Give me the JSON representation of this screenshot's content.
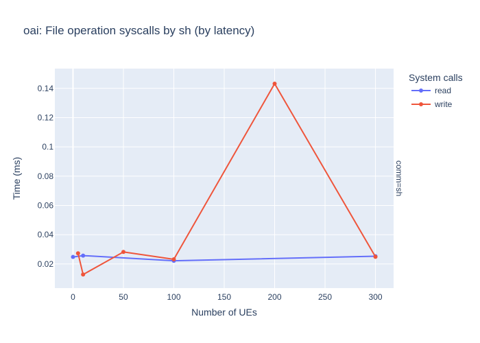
{
  "chart_data": {
    "type": "line",
    "title": "oai: File operation syscalls by sh (by latency)",
    "xlabel": "Number of UEs",
    "ylabel": "Time (ms)",
    "xlim": [
      -18,
      318
    ],
    "ylim": [
      0.0035,
      0.1535
    ],
    "xticks": [
      0,
      50,
      100,
      150,
      200,
      250,
      300
    ],
    "yticks": [
      0.02,
      0.04,
      0.06,
      0.08,
      0.1,
      0.12,
      0.14
    ],
    "ytick_labels": [
      "0.02",
      "0.04",
      "0.06",
      "0.08",
      "0.1",
      "0.12",
      "0.14"
    ],
    "legend_title": "System calls",
    "legend_position": "right",
    "facet_label": "comm=sh",
    "grid": true,
    "series": [
      {
        "name": "read",
        "color": "#636efa",
        "x": [
          0,
          10,
          100,
          300
        ],
        "y": [
          0.0248,
          0.0257,
          0.0222,
          0.0253
        ]
      },
      {
        "name": "write",
        "color": "#ef553b",
        "x": [
          5,
          10,
          50,
          100,
          200,
          300
        ],
        "y": [
          0.0273,
          0.0128,
          0.0282,
          0.0232,
          0.1432,
          0.0249
        ]
      }
    ]
  }
}
